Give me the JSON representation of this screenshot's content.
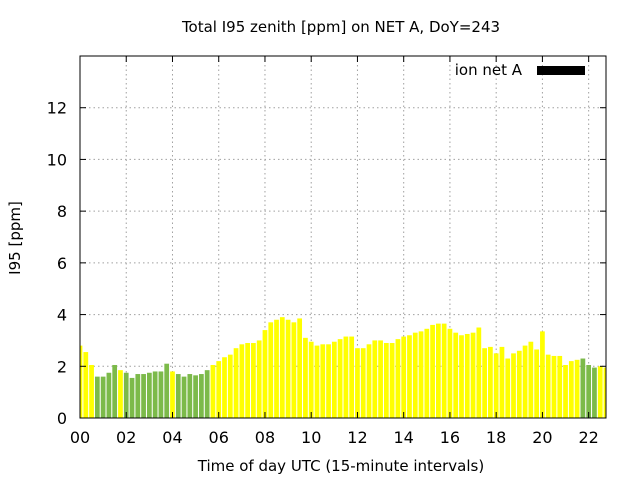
{
  "chart_data": {
    "type": "bar",
    "title": "Total I95 zenith [ppm] on NET A, DoY=243",
    "xlabel": "Time of day UTC (15-minute intervals)",
    "ylabel": "I95 [ppm]",
    "xlim": [
      0,
      22.75
    ],
    "ylim": [
      0,
      14
    ],
    "xticks": [
      0,
      2,
      4,
      6,
      8,
      10,
      12,
      14,
      16,
      18,
      20,
      22
    ],
    "xtick_labels": [
      "00",
      "02",
      "04",
      "06",
      "08",
      "10",
      "12",
      "14",
      "16",
      "18",
      "20",
      "22"
    ],
    "yticks": [
      0,
      2,
      4,
      6,
      8,
      10,
      12
    ],
    "ytick_labels": [
      "0",
      "2",
      "4",
      "6",
      "8",
      "10",
      "12"
    ],
    "grid": true,
    "legend": {
      "label": "ion net A",
      "color": "#000000",
      "placement": "top-right"
    },
    "interval_hours": 0.25,
    "colors": {
      "G": "#7cba4a",
      "Y": "#ffff00"
    },
    "color_codes": "YYYGGGGYGGGGGGGGYGGGGGGYYYYYYYYYYYYYYYYYYYYYYYYYYYYYYYYYYYYYYYYYYYYYYYYYYYYYYYYYYYYYYYYGGG",
    "values": [
      2.8,
      2.55,
      2.05,
      1.6,
      1.6,
      1.75,
      2.05,
      1.85,
      1.75,
      1.55,
      1.7,
      1.7,
      1.75,
      1.8,
      1.8,
      2.1,
      1.8,
      1.7,
      1.6,
      1.7,
      1.65,
      1.7,
      1.85,
      2.05,
      2.2,
      2.35,
      2.45,
      2.7,
      2.85,
      2.9,
      2.9,
      3.0,
      3.4,
      3.7,
      3.8,
      3.9,
      3.8,
      3.7,
      3.85,
      3.1,
      2.95,
      2.8,
      2.85,
      2.85,
      2.95,
      3.05,
      3.15,
      3.15,
      2.7,
      2.7,
      2.85,
      3.0,
      3.0,
      2.9,
      2.9,
      3.05,
      3.15,
      3.2,
      3.3,
      3.35,
      3.45,
      3.6,
      3.65,
      3.65,
      3.45,
      3.3,
      3.2,
      3.25,
      3.3,
      3.5,
      2.7,
      2.75,
      2.5,
      2.75,
      2.3,
      2.5,
      2.6,
      2.8,
      2.95,
      2.65,
      3.35,
      2.45,
      2.4,
      2.4,
      2.05,
      2.2,
      2.25,
      2.3,
      2.05,
      1.95,
      2.0,
      1.95,
      2.0
    ]
  }
}
